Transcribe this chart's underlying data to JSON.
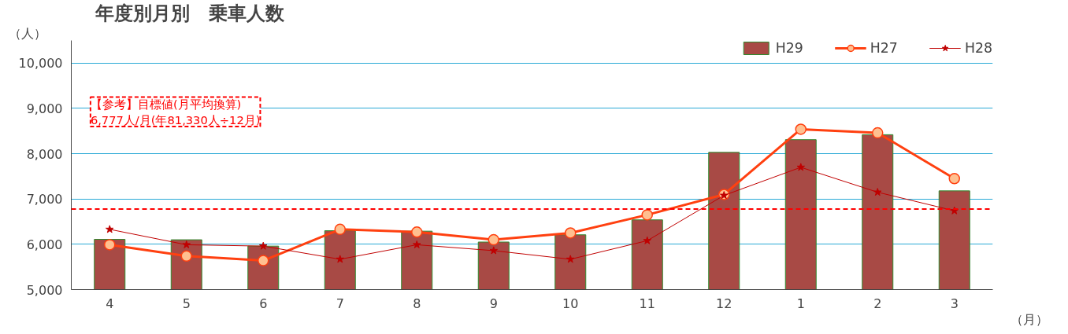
{
  "chart_data": {
    "type": "bar",
    "title": "年度別月別　乗車人数",
    "ylabel": "（人）",
    "xlabel": "（月）",
    "categories": [
      "4",
      "5",
      "6",
      "7",
      "8",
      "9",
      "10",
      "11",
      "12",
      "1",
      "2",
      "3"
    ],
    "series": [
      {
        "name": "H29",
        "color": "#a84a45",
        "values": [
          6110,
          6100,
          5960,
          6300,
          6290,
          6050,
          6210,
          6540,
          8030,
          8310,
          8420,
          7180
        ]
      },
      {
        "name": "H27",
        "type": "line",
        "color": "#ff4010",
        "marker": "circle",
        "values": [
          5990,
          5740,
          5640,
          6330,
          6270,
          6100,
          6250,
          6650,
          7100,
          8540,
          8460,
          7450
        ]
      },
      {
        "name": "H28",
        "type": "line",
        "color": "#c00000",
        "marker": "star",
        "values": [
          6330,
          5990,
          5960,
          5670,
          5990,
          5860,
          5670,
          6080,
          7080,
          7700,
          7150,
          6740
        ]
      }
    ],
    "ylim": [
      5000,
      10500
    ],
    "yticks": [
      {
        "value": 5000,
        "label": "5,000"
      },
      {
        "value": 6000,
        "label": "6,000"
      },
      {
        "value": 7000,
        "label": "7,000"
      },
      {
        "value": 8000,
        "label": "8,000"
      },
      {
        "value": 9000,
        "label": "9,000"
      },
      {
        "value": 10000,
        "label": "10,000"
      }
    ],
    "grid": "y",
    "legend": "top right",
    "ref_lines": [
      {
        "axis": "y",
        "value": 6777,
        "color": "#ff0000",
        "line_style": "dashed"
      }
    ],
    "annotations": [
      "【参考】目標値(月平均換算)\n6,777人/月(年81,330人÷12月)"
    ]
  }
}
